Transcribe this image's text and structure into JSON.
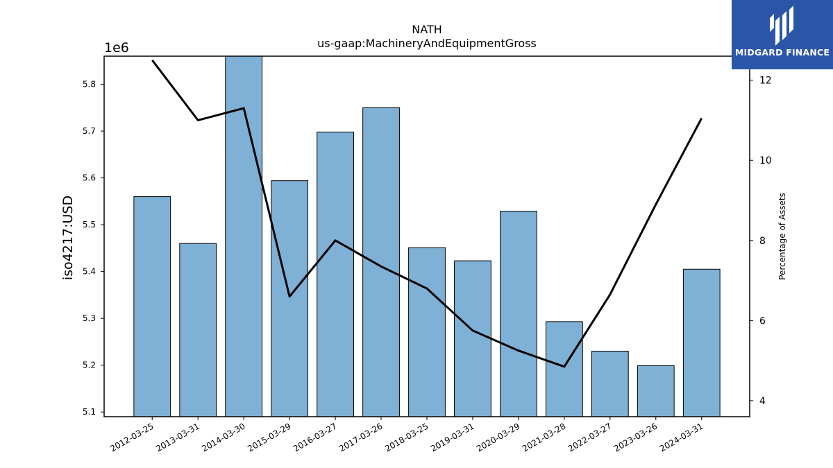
{
  "chart_data": {
    "type": "bar",
    "title": "NATH",
    "subtitle": "us-gaap:MachineryAndEquipmentGross",
    "ylabel": "iso4217:USD",
    "y_offset_label": "1e6",
    "y2label": "Percentage of Assets",
    "categories": [
      "2012-03-25",
      "2013-03-31",
      "2014-03-30",
      "2015-03-29",
      "2016-03-27",
      "2017-03-26",
      "2018-03-25",
      "2019-03-31",
      "2020-03-29",
      "2021-03-28",
      "2022-03-27",
      "2023-03-26",
      "2024-03-31"
    ],
    "series": [
      {
        "type": "bar",
        "axis": "left",
        "color": "#7fb0d5",
        "values": [
          5560000,
          5460000,
          5860000,
          5594000,
          5698000,
          5750000,
          5451000,
          5423000,
          5529000,
          5293000,
          5230000,
          5199000,
          5405000
        ]
      },
      {
        "type": "line",
        "axis": "right",
        "color": "#000000",
        "values": [
          12.5,
          11.0,
          11.3,
          6.6,
          8.0,
          7.35,
          6.8,
          5.75,
          5.25,
          4.85,
          6.65,
          8.9,
          11.05
        ]
      }
    ],
    "ylim": [
      5090000,
      5860000
    ],
    "y2lim": [
      3.6,
      12.6
    ],
    "yticks": [
      5.1,
      5.2,
      5.3,
      5.4,
      5.5,
      5.6,
      5.7,
      5.8
    ],
    "y2ticks": [
      4,
      6,
      8,
      10,
      12
    ],
    "grid": false
  },
  "logo": {
    "text": "MIDGARD FINANCE"
  }
}
